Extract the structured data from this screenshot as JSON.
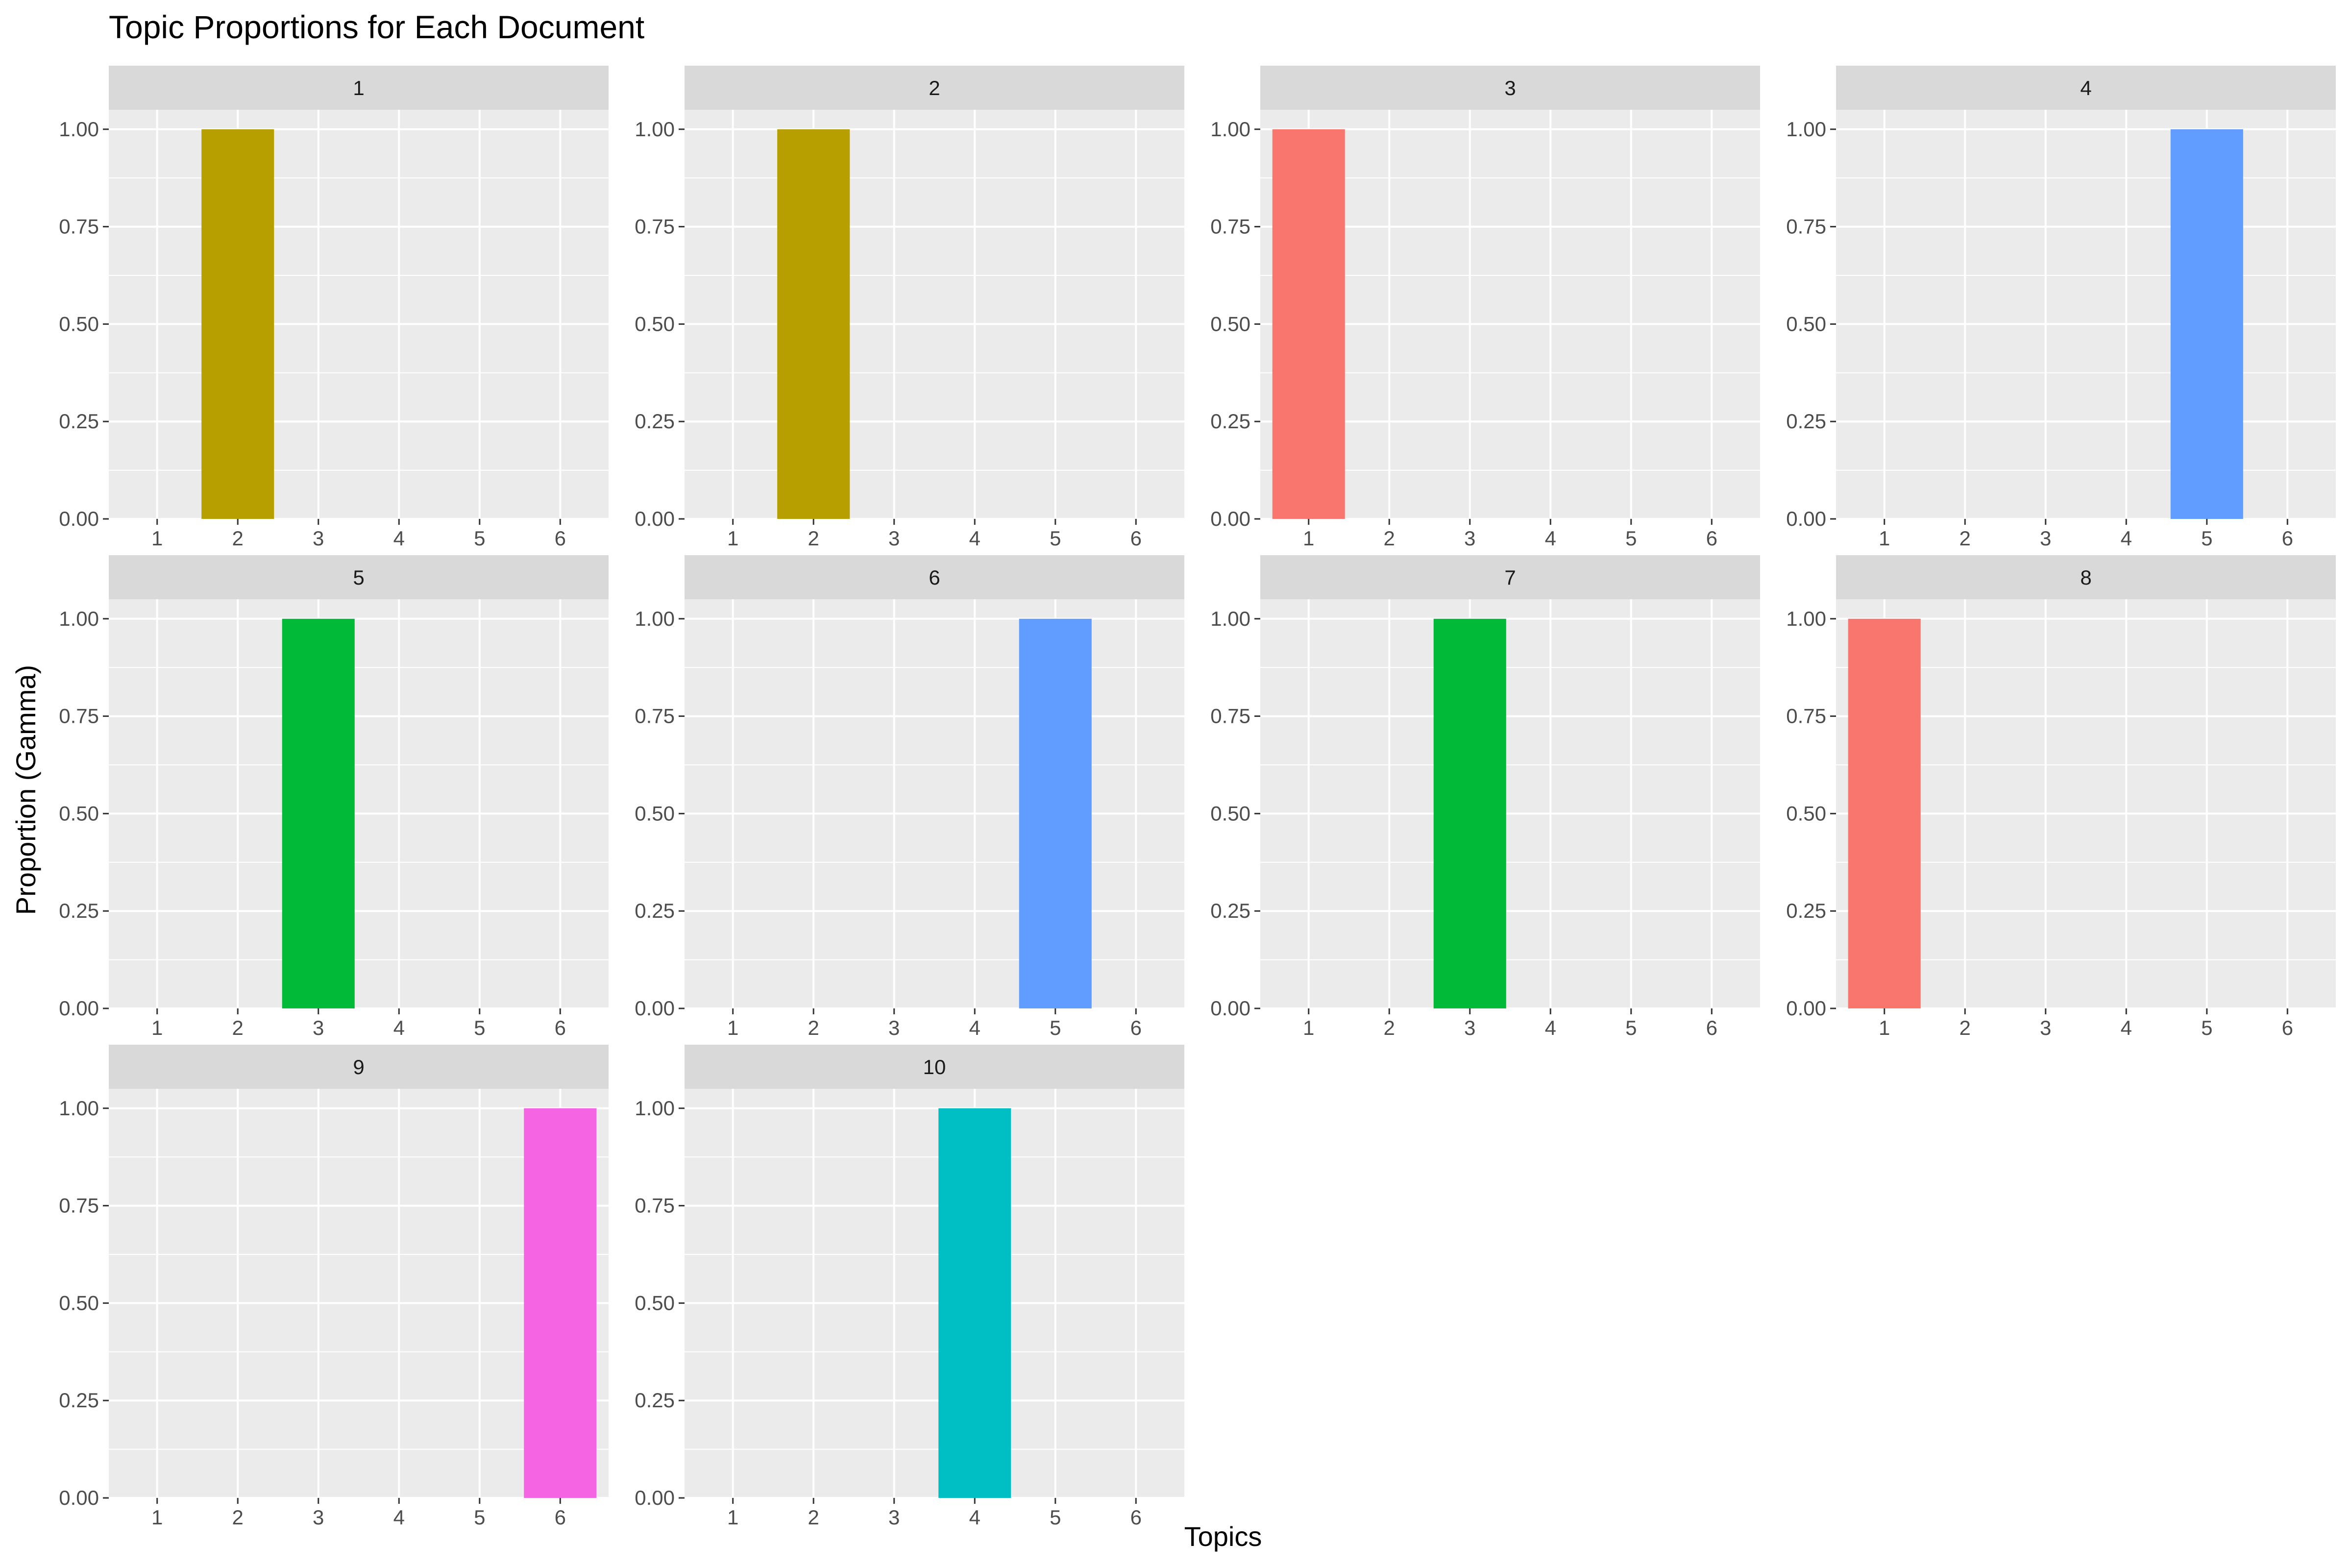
{
  "chart_data": {
    "type": "bar",
    "title": "Topic Proportions for Each Document",
    "xlabel": "Topics",
    "ylabel": "Proportion (Gamma)",
    "facet_variable": "document",
    "categories": [
      "1",
      "2",
      "3",
      "4",
      "5",
      "6"
    ],
    "ylim": [
      0,
      1.05
    ],
    "y_ticks": [
      "0.00",
      "0.25",
      "0.50",
      "0.75",
      "1.00"
    ],
    "y_tick_values": [
      0,
      0.25,
      0.5,
      0.75,
      1.0
    ],
    "grid": true,
    "legend": "none",
    "topic_colors": {
      "1": "#F8766D",
      "2": "#B79F00",
      "3": "#00BA38",
      "4": "#00BFC4",
      "5": "#619CFF",
      "6": "#F564E3"
    },
    "panels": [
      {
        "label": "1",
        "topic": "2",
        "gamma": 1.0
      },
      {
        "label": "2",
        "topic": "2",
        "gamma": 1.0
      },
      {
        "label": "3",
        "topic": "1",
        "gamma": 1.0
      },
      {
        "label": "4",
        "topic": "5",
        "gamma": 1.0
      },
      {
        "label": "5",
        "topic": "3",
        "gamma": 1.0
      },
      {
        "label": "6",
        "topic": "5",
        "gamma": 1.0
      },
      {
        "label": "7",
        "topic": "3",
        "gamma": 1.0
      },
      {
        "label": "8",
        "topic": "1",
        "gamma": 1.0
      },
      {
        "label": "9",
        "topic": "6",
        "gamma": 1.0
      },
      {
        "label": "10",
        "topic": "4",
        "gamma": 1.0
      }
    ]
  }
}
